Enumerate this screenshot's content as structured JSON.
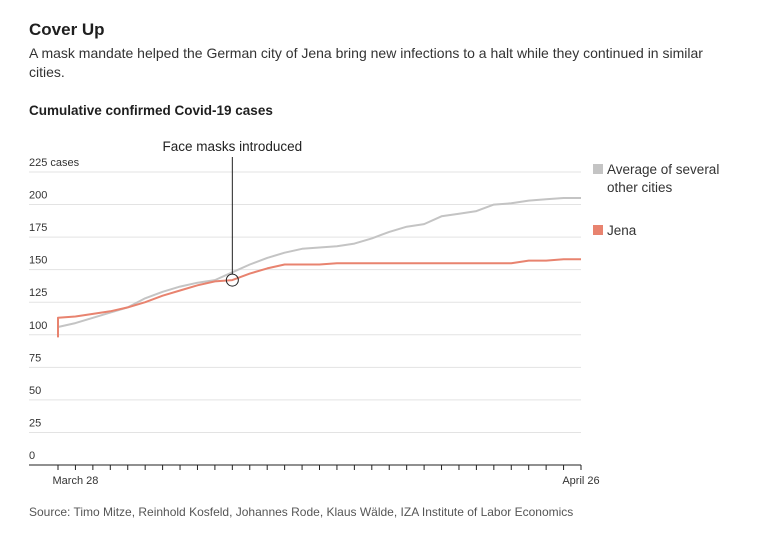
{
  "header": {
    "title": "Cover Up",
    "subtitle": "A mask mandate helped the German city of Jena bring new infections to a halt while they continued in similar cities.",
    "chart_title": "Cumulative confirmed Covid-19 cases"
  },
  "footer": {
    "source": "Source: Timo Mitze, Reinhold Kosfeld, Johannes Rode, Klaus Wälde, IZA Institute of Labor Economics"
  },
  "colors": {
    "jena": "#e8836f",
    "average": "#c4c4c4",
    "grid": "#e3e3e3",
    "axis": "#222222"
  },
  "chart_data": {
    "type": "line",
    "title": "Cumulative confirmed Covid-19 cases",
    "xlabel": "",
    "ylabel": "",
    "x": [
      "Mar 27",
      "Mar 28",
      "Mar 29",
      "Mar 30",
      "Mar 31",
      "Apr 1",
      "Apr 2",
      "Apr 3",
      "Apr 4",
      "Apr 5",
      "Apr 6",
      "Apr 7",
      "Apr 8",
      "Apr 9",
      "Apr 10",
      "Apr 11",
      "Apr 12",
      "Apr 13",
      "Apr 14",
      "Apr 15",
      "Apr 16",
      "Apr 17",
      "Apr 18",
      "Apr 19",
      "Apr 20",
      "Apr 21",
      "Apr 22",
      "Apr 23",
      "Apr 24",
      "Apr 25",
      "Apr 26"
    ],
    "x_tick_labels": [
      {
        "x": "Mar 28",
        "label": "March 28"
      },
      {
        "x": "Apr 26",
        "label": "April 26"
      }
    ],
    "ylim": [
      0,
      225
    ],
    "y_ticks": [
      0,
      25,
      50,
      75,
      100,
      125,
      150,
      175,
      200,
      225
    ],
    "y_top_label": "225 cases",
    "grid": true,
    "legend_position": "right",
    "series": [
      {
        "name": "Average of several other cities",
        "color": "#c4c4c4",
        "values": [
          106,
          109,
          113,
          117,
          121,
          128,
          133,
          137,
          140,
          142,
          148,
          154,
          159,
          163,
          166,
          167,
          168,
          170,
          174,
          179,
          183,
          185,
          191,
          193,
          195,
          200,
          201,
          203,
          204,
          205,
          205
        ]
      },
      {
        "name": "Jena",
        "color": "#e8836f",
        "start_value": 98,
        "values": [
          113,
          114,
          116,
          118,
          121,
          125,
          130,
          134,
          138,
          141,
          142,
          147,
          151,
          154,
          154,
          154,
          155,
          155,
          155,
          155,
          155,
          155,
          155,
          155,
          155,
          155,
          155,
          157,
          157,
          158,
          158
        ]
      }
    ],
    "annotations": [
      {
        "x": "Apr 6",
        "value": 142,
        "text": "Face masks introduced"
      }
    ]
  }
}
